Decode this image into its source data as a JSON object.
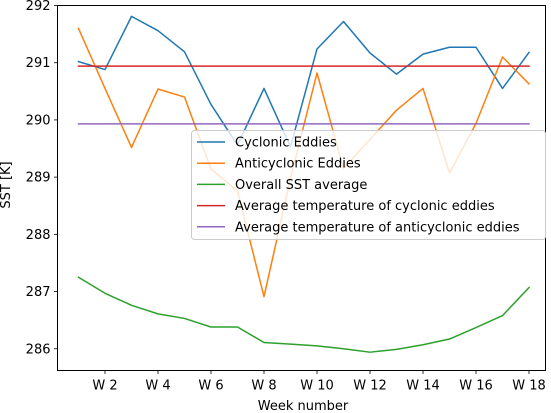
{
  "chart_data": {
    "type": "line",
    "title": "",
    "xlabel": "Week number",
    "ylabel": "SST [K]",
    "x": [
      1,
      2,
      3,
      4,
      5,
      6,
      7,
      8,
      9,
      10,
      11,
      12,
      13,
      14,
      15,
      16,
      17,
      18
    ],
    "x_tick_values": [
      2,
      4,
      6,
      8,
      10,
      12,
      14,
      16,
      18
    ],
    "x_tick_labels": [
      "W 2",
      "W 4",
      "W 6",
      "W 8",
      "W 10",
      "W 12",
      "W 14",
      "W 16",
      "W 18"
    ],
    "ylim": [
      285.62,
      292.0
    ],
    "y_ticks": [
      286,
      287,
      288,
      289,
      290,
      291,
      292
    ],
    "legend_position": "center-right",
    "grid": false,
    "series": [
      {
        "name": "Cyclonic Eddies",
        "color": "#1f77b4",
        "values": [
          291.02,
          290.88,
          291.81,
          291.56,
          291.19,
          290.27,
          289.56,
          290.55,
          289.53,
          291.24,
          291.72,
          291.17,
          290.8,
          291.15,
          291.27,
          291.27,
          290.55,
          291.18
        ]
      },
      {
        "name": "Anticyclonic Eddies",
        "color": "#ff7f0e",
        "values": [
          291.6,
          290.55,
          289.52,
          290.54,
          290.4,
          289.14,
          288.76,
          286.91,
          288.98,
          290.82,
          289.15,
          289.66,
          290.17,
          290.55,
          289.07,
          289.94,
          291.1,
          290.63
        ]
      },
      {
        "name": "Overall SST average",
        "color": "#2ca02c",
        "values": [
          287.25,
          286.97,
          286.76,
          286.61,
          286.53,
          286.38,
          286.38,
          286.11,
          286.08,
          286.05,
          286.0,
          285.94,
          285.99,
          286.07,
          286.17,
          286.37,
          286.58,
          287.07
        ]
      },
      {
        "name": "Average temperature of cyclonic eddies",
        "color": "#d62728",
        "values": [
          290.94,
          290.94,
          290.94,
          290.94,
          290.94,
          290.94,
          290.94,
          290.94,
          290.94,
          290.94,
          290.94,
          290.94,
          290.94,
          290.94,
          290.94,
          290.94,
          290.94,
          290.94
        ]
      },
      {
        "name": "Average temperature of anticyclonic eddies",
        "color": "#9467bd",
        "values": [
          289.93,
          289.93,
          289.93,
          289.93,
          289.93,
          289.93,
          289.93,
          289.93,
          289.93,
          289.93,
          289.93,
          289.93,
          289.93,
          289.93,
          289.93,
          289.93,
          289.93,
          289.93
        ]
      }
    ]
  }
}
